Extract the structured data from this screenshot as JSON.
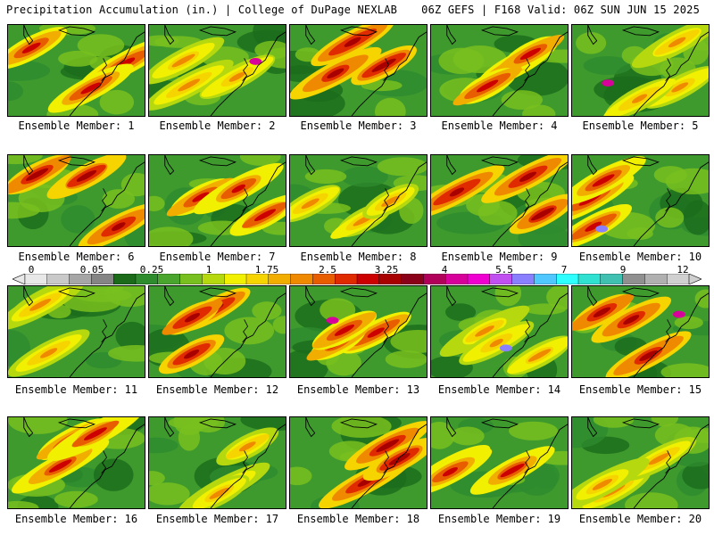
{
  "header": {
    "left": "Precipitation Accumulation (in.) | College of DuPage NEXLAB",
    "right": "06Z GEFS | F168 Valid: 06Z SUN JUN 15 2025"
  },
  "colors": {
    "scale": [
      "#e8e8e8",
      "#c9c9c9",
      "#a6a6a6",
      "#858585",
      "#1b6b1b",
      "#2e8b2e",
      "#4aa52e",
      "#78c01f",
      "#b5d80f",
      "#f0f000",
      "#f5d400",
      "#f2ae00",
      "#ef8a00",
      "#e85d00",
      "#e02a00",
      "#cc0000",
      "#a80000",
      "#8a0018",
      "#b0005a",
      "#d8009a",
      "#f000d0",
      "#c050f0",
      "#8a80ff",
      "#50c8ff",
      "#30ffff",
      "#30e0d0",
      "#40c0b0",
      "#909090",
      "#b0b0b0",
      "#d0d0d0"
    ],
    "map_background": "#3f9a2e",
    "coast": "#000000"
  },
  "legend": {
    "ticks": [
      "0",
      "0.05",
      "0.25",
      "1",
      "1.75",
      "2.5",
      "3.25",
      "4",
      "5.5",
      "7",
      "9",
      "12"
    ]
  },
  "members": [
    {
      "label": "Ensemble Member: 1",
      "member": 1
    },
    {
      "label": "Ensemble Member: 2",
      "member": 2
    },
    {
      "label": "Ensemble Member: 3",
      "member": 3
    },
    {
      "label": "Ensemble Member: 4",
      "member": 4
    },
    {
      "label": "Ensemble Member: 5",
      "member": 5
    },
    {
      "label": "Ensemble Member: 6",
      "member": 6
    },
    {
      "label": "Ensemble Member: 7",
      "member": 7
    },
    {
      "label": "Ensemble Member: 8",
      "member": 8
    },
    {
      "label": "Ensemble Member: 9",
      "member": 9
    },
    {
      "label": "Ensemble Member: 10",
      "member": 10
    },
    {
      "label": "Ensemble Member: 11",
      "member": 11
    },
    {
      "label": "Ensemble Member: 12",
      "member": 12
    },
    {
      "label": "Ensemble Member: 13",
      "member": 13
    },
    {
      "label": "Ensemble Member: 14",
      "member": 14
    },
    {
      "label": "Ensemble Member: 15",
      "member": 15
    },
    {
      "label": "Ensemble Member: 16",
      "member": 16
    },
    {
      "label": "Ensemble Member: 17",
      "member": 17
    },
    {
      "label": "Ensemble Member: 18",
      "member": 18
    },
    {
      "label": "Ensemble Member: 19",
      "member": 19
    },
    {
      "label": "Ensemble Member: 20",
      "member": 20
    }
  ]
}
